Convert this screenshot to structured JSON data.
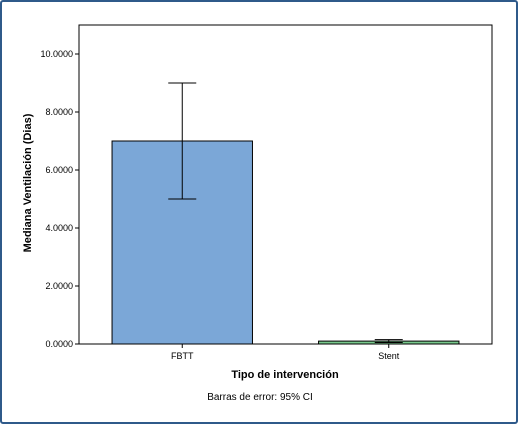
{
  "chart_data": {
    "type": "bar",
    "categories": [
      "FBTT",
      "Stent"
    ],
    "values": [
      7.0,
      0.1
    ],
    "error_bars": [
      [
        5.0,
        9.0
      ],
      [
        0.05,
        0.15
      ]
    ],
    "error_note": "Barras de error: 95% CI",
    "xlabel": "Tipo de intervención",
    "ylabel": "Mediana Ventilación  (Dias)",
    "ylim": [
      0,
      11
    ],
    "yticks": [
      0,
      2,
      4,
      6,
      8,
      10
    ],
    "ytick_labels": [
      "0.0000",
      "2.0000",
      "4.0000",
      "6.0000",
      "8.0000",
      "10.0000"
    ],
    "bar_colors": [
      "#7ba7d7",
      "#78c88c"
    ],
    "grid": false,
    "legend": "none"
  }
}
